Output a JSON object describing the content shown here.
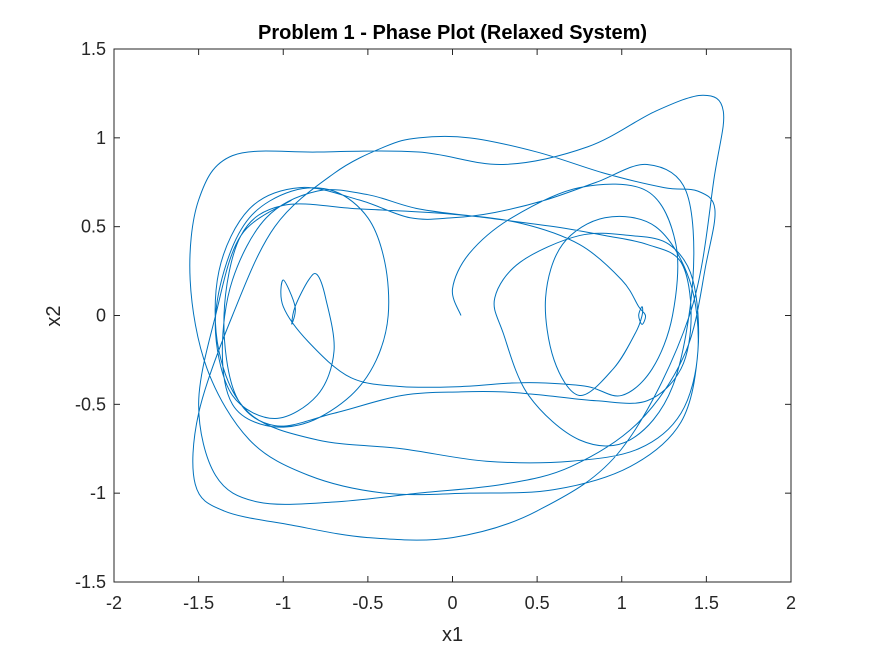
{
  "chart_data": {
    "type": "line",
    "title": "Problem 1 - Phase Plot (Relaxed System)",
    "xlabel": "x1",
    "ylabel": "x2",
    "xlim": [
      -2,
      2
    ],
    "ylim": [
      -1.5,
      1.5
    ],
    "xticks": [
      -2,
      -1.5,
      -1,
      -0.5,
      0,
      0.5,
      1,
      1.5,
      2
    ],
    "xtick_labels": [
      "-2",
      "-1.5",
      "-1",
      "-0.5",
      "0",
      "0.5",
      "1",
      "1.5",
      "2"
    ],
    "yticks": [
      -1.5,
      -1,
      -0.5,
      0,
      0.5,
      1,
      1.5
    ],
    "ytick_labels": [
      "-1.5",
      "-1",
      "-0.5",
      "0",
      "0.5",
      "1",
      "1.5"
    ],
    "grid": false,
    "box": true,
    "series": [
      {
        "color": "#0072BD",
        "x": [
          0.05,
          0.0,
          0.1,
          0.35,
          0.75,
          1.15,
          1.32,
          1.3,
          1.18,
          1.0,
          0.8,
          0.55,
          0.35,
          0.05,
          -0.3,
          -0.6,
          -0.85,
          -1.0,
          -1.0,
          -0.93,
          -0.95,
          -0.93,
          -0.85,
          -0.8,
          -0.75,
          -0.7,
          -0.8,
          -1.05,
          -1.3,
          -1.4,
          -1.35,
          -1.2,
          -0.95,
          -0.7,
          -0.5,
          -0.4,
          -0.38,
          -0.45,
          -0.6,
          -0.85,
          -1.1,
          -1.3,
          -1.36,
          -1.3,
          -1.1,
          -0.8,
          -0.5,
          -0.2,
          0.2,
          0.6,
          0.9,
          1.15,
          1.35,
          1.41,
          1.35,
          1.15,
          0.85,
          0.55,
          0.3,
          0.05,
          -0.3,
          -0.7,
          -1.05,
          -1.28,
          -1.35,
          -1.25,
          -1.0,
          -0.55,
          0.0,
          0.4,
          0.75,
          1.0,
          1.1,
          1.14,
          1.12,
          1.1,
          1.12,
          1.12,
          1.08,
          0.95,
          0.75,
          0.6,
          0.55,
          0.65,
          0.9,
          1.2,
          1.4,
          1.45,
          1.35,
          1.1,
          0.7,
          0.2,
          -0.3,
          -0.8,
          -1.2,
          -1.38,
          -1.38,
          -1.2,
          -0.9,
          -0.55,
          -0.25,
          0.0,
          0.25,
          0.55,
          0.85,
          1.15,
          1.38,
          1.42,
          1.3,
          1.05,
          0.75,
          0.45,
          0.3,
          0.25,
          0.4,
          0.75,
          1.05,
          1.28,
          1.42,
          1.45,
          1.35,
          1.05,
          0.6,
          0.1,
          -0.4,
          -0.85,
          -1.2,
          -1.45,
          -1.55,
          -1.5,
          -1.3,
          -0.8,
          -0.2,
          0.3,
          0.8,
          1.2,
          1.48,
          1.6,
          1.55,
          1.4,
          1.0,
          0.5,
          0.0,
          -0.5,
          -0.95,
          -1.35,
          -1.52,
          -1.5,
          -1.3,
          -1.05,
          -0.7,
          -0.4,
          -0.2,
          0.1,
          0.5,
          0.9,
          1.25,
          1.45,
          1.55,
          1.5,
          1.38,
          1.1,
          0.7,
          0.3,
          -0.2,
          -0.7,
          -1.15,
          -1.4,
          -1.5,
          -1.4,
          -1.25,
          -0.95
        ],
        "y": [
          0.0,
          0.15,
          0.35,
          0.55,
          0.72,
          0.7,
          0.4,
          0.0,
          -0.3,
          -0.45,
          -0.4,
          -0.38,
          -0.38,
          -0.4,
          -0.4,
          -0.35,
          -0.15,
          0.05,
          0.2,
          0.05,
          -0.05,
          0.05,
          0.2,
          0.23,
          0.1,
          -0.2,
          -0.45,
          -0.58,
          -0.45,
          -0.1,
          0.25,
          0.55,
          0.7,
          0.7,
          0.55,
          0.3,
          0.0,
          -0.25,
          -0.45,
          -0.6,
          -0.62,
          -0.5,
          -0.2,
          0.2,
          0.55,
          0.7,
          0.68,
          0.6,
          0.55,
          0.5,
          0.45,
          0.4,
          0.3,
          0.0,
          -0.3,
          -0.48,
          -0.48,
          -0.45,
          -0.43,
          -0.43,
          -0.45,
          -0.55,
          -0.62,
          -0.45,
          0.0,
          0.45,
          0.62,
          0.6,
          0.57,
          0.52,
          0.4,
          0.2,
          0.05,
          0.0,
          -0.05,
          0.0,
          0.05,
          0.0,
          -0.1,
          -0.3,
          -0.45,
          -0.25,
          0.1,
          0.4,
          0.55,
          0.5,
          0.2,
          -0.2,
          -0.55,
          -0.75,
          -0.82,
          -0.82,
          -0.75,
          -0.7,
          -0.55,
          -0.2,
          0.25,
          0.6,
          0.72,
          0.65,
          0.55,
          0.55,
          0.58,
          0.65,
          0.75,
          0.85,
          0.7,
          0.2,
          -0.4,
          -0.7,
          -0.7,
          -0.45,
          -0.1,
          0.1,
          0.3,
          0.45,
          0.45,
          0.4,
          0.2,
          -0.2,
          -0.6,
          -0.85,
          -0.98,
          -1.0,
          -1.0,
          -0.9,
          -0.7,
          -0.3,
          0.2,
          0.65,
          0.9,
          0.92,
          0.92,
          0.85,
          0.95,
          1.15,
          1.24,
          1.15,
          0.8,
          0.0,
          -0.75,
          -1.1,
          -1.25,
          -1.25,
          -1.18,
          -1.1,
          -0.95,
          -0.55,
          0.0,
          0.5,
          0.8,
          0.95,
          1.0,
          1.0,
          0.92,
          0.8,
          0.72,
          0.7,
          0.6,
          0.3,
          -0.2,
          -0.6,
          -0.85,
          -0.95,
          -1.0,
          -1.05,
          -1.05,
          -0.9,
          -0.5,
          0.0,
          0.45,
          0.65
        ]
      }
    ]
  }
}
